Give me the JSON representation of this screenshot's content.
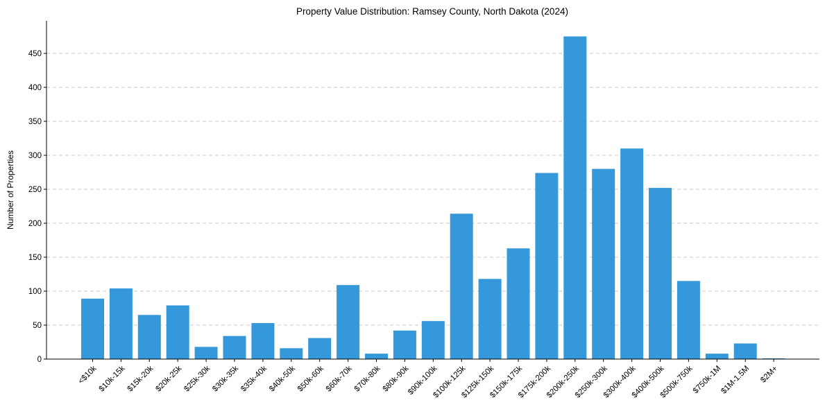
{
  "chart_data": {
    "type": "bar",
    "title": "Property Value Distribution: Ramsey County, North Dakota (2024)",
    "xlabel": "",
    "ylabel": "Number of Properties",
    "ylim": [
      0,
      498
    ],
    "yticks": [
      0,
      50,
      100,
      150,
      200,
      250,
      300,
      350,
      400,
      450
    ],
    "grid": "y-dashed",
    "bar_color": "#3498db",
    "categories": [
      "<$10k",
      "$10k-15k",
      "$15k-20k",
      "$20k-25k",
      "$25k-30k",
      "$30k-35k",
      "$35k-40k",
      "$40k-50k",
      "$50k-60k",
      "$60k-70k",
      "$70k-80k",
      "$80k-90k",
      "$90k-100k",
      "$100k-125k",
      "$125k-150k",
      "$150k-175k",
      "$175k-200k",
      "$200k-250k",
      "$250k-300k",
      "$300k-400k",
      "$400k-500k",
      "$500k-750k",
      "$750k-1M",
      "$1M-1.5M",
      "$2M+"
    ],
    "values": [
      89,
      104,
      65,
      79,
      18,
      34,
      53,
      16,
      31,
      109,
      8,
      42,
      56,
      214,
      118,
      163,
      274,
      475,
      280,
      310,
      252,
      115,
      8,
      23,
      1
    ]
  }
}
